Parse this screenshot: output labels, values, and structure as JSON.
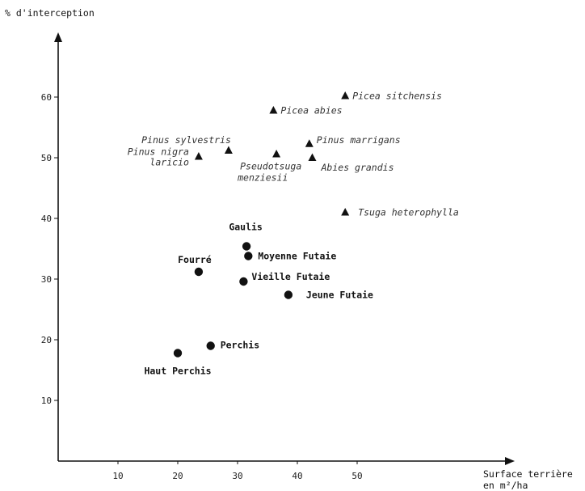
{
  "chart_data": {
    "type": "scatter",
    "title": "",
    "ylabel": "% d'interception",
    "xlabel": [
      "Surface terrière",
      "en m²/ha"
    ],
    "xlim": [
      0,
      65
    ],
    "ylim": [
      0,
      70
    ],
    "xticks": [
      10,
      20,
      30,
      40,
      50
    ],
    "yticks": [
      10,
      20,
      30,
      40,
      50,
      60
    ],
    "grid": false,
    "series": [
      {
        "marker": "triangle",
        "points": [
          {
            "x": 48,
            "y": 60.2,
            "label": "Picea sitchensis"
          },
          {
            "x": 36,
            "y": 57.8,
            "label": "Picea abies"
          },
          {
            "x": 28.5,
            "y": 51.2,
            "label": "Pinus sylvestris"
          },
          {
            "x": 42,
            "y": 52.3,
            "label": "Pinus marrigans"
          },
          {
            "x": 23.5,
            "y": 50.2,
            "label": "Pinus nigra laricio"
          },
          {
            "x": 36.5,
            "y": 50.6,
            "label": "Pseudotsuga menziesii"
          },
          {
            "x": 42.5,
            "y": 50,
            "label": "Abies grandis"
          },
          {
            "x": 48,
            "y": 41,
            "label": "Tsuga heterophylla"
          }
        ]
      },
      {
        "marker": "circle",
        "points": [
          {
            "x": 31.5,
            "y": 35.4,
            "label": "Gaulis"
          },
          {
            "x": 31.8,
            "y": 33.8,
            "label": "Moyenne Futaie"
          },
          {
            "x": 23.5,
            "y": 31.2,
            "label": "Fourré"
          },
          {
            "x": 31,
            "y": 29.6,
            "label": "Vieille Futaie"
          },
          {
            "x": 38.5,
            "y": 27.4,
            "label": "Jeune Futaie"
          },
          {
            "x": 25.5,
            "y": 19,
            "label": "Perchis"
          },
          {
            "x": 20,
            "y": 17.8,
            "label": "Haut Perchis"
          }
        ]
      }
    ]
  }
}
